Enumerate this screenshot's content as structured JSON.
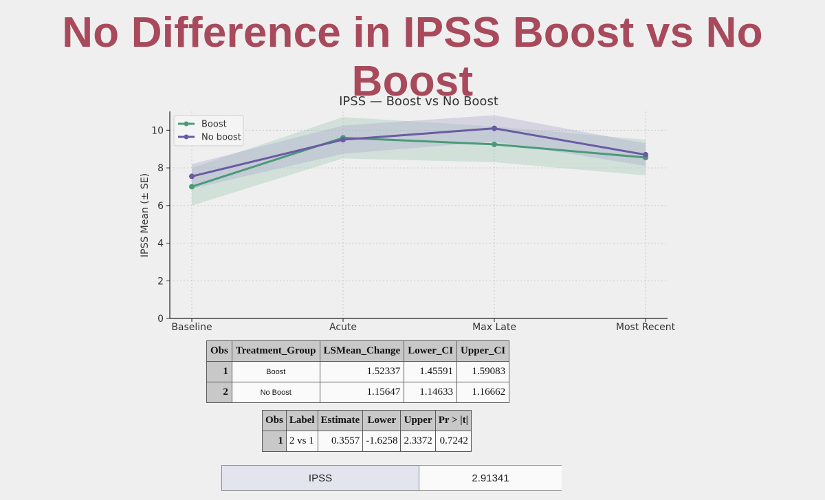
{
  "slide": {
    "title": "No Difference in IPSS Boost vs No Boost"
  },
  "chart_data": {
    "type": "line",
    "title": "IPSS — Boost vs No Boost",
    "xlabel": "",
    "ylabel": "IPSS Mean (± SE)",
    "categories": [
      "Baseline",
      "Acute",
      "Max Late",
      "Most Recent"
    ],
    "ylim": [
      0,
      11
    ],
    "yticks": [
      0,
      2,
      4,
      6,
      8,
      10
    ],
    "grid": true,
    "legend_position": "top-left",
    "series": [
      {
        "name": "Boost",
        "color": "#4a9a7a",
        "band_color": "#9cc9b4",
        "values": [
          7.0,
          9.6,
          9.25,
          8.55
        ],
        "upper": [
          8.0,
          10.7,
          10.2,
          9.5
        ],
        "lower": [
          6.0,
          8.5,
          8.3,
          7.6
        ]
      },
      {
        "name": "No boost",
        "color": "#6a5aa3",
        "band_color": "#a8a4c8",
        "values": [
          7.55,
          9.5,
          10.1,
          8.7
        ],
        "upper": [
          8.2,
          10.25,
          10.8,
          9.3
        ],
        "lower": [
          6.9,
          8.75,
          9.4,
          8.1
        ]
      }
    ]
  },
  "table1": {
    "headers": [
      "Obs",
      "Treatment_Group",
      "LSMean_Change",
      "Lower_CI",
      "Upper_CI"
    ],
    "rows": [
      [
        "1",
        "Boost",
        "1.52337",
        "1.45591",
        "1.59083"
      ],
      [
        "2",
        "No Boost",
        "1.15647",
        "1.14633",
        "1.16662"
      ]
    ]
  },
  "table2": {
    "headers": [
      "Obs",
      "Label",
      "Estimate",
      "Lower",
      "Upper",
      "Pr > |t|"
    ],
    "rows": [
      [
        "1",
        "2 vs 1",
        "0.3557",
        "-1.6258",
        "2.3372",
        "0.7242"
      ]
    ]
  },
  "summary": {
    "label": "IPSS",
    "value": "2.91341"
  }
}
